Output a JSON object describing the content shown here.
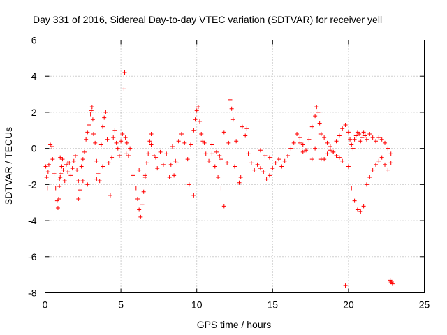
{
  "chart_data": {
    "type": "scatter",
    "title": "Day 331 of 2016, Sidereal Day-to-day VTEC variation (SDTVAR) for receiver yell",
    "xlabel": "GPS time / hours",
    "ylabel": "SDTVAR / TECUs",
    "xlim": [
      0,
      25
    ],
    "ylim": [
      -8,
      6
    ],
    "xticks": [
      0,
      5,
      10,
      15,
      20,
      25
    ],
    "yticks": [
      -8,
      -6,
      -4,
      -2,
      0,
      2,
      4,
      6
    ],
    "grid": true,
    "legend": "none",
    "marker": "+",
    "series_color": "#ff0000",
    "series": [
      {
        "name": "SDTVAR",
        "x": [
          0.05,
          0.1,
          0.15,
          0.2,
          0.25,
          0.35,
          0.45,
          0.5,
          0.6,
          0.7,
          0.8,
          0.85,
          0.9,
          0.95,
          1.0,
          1.05,
          1.1,
          1.15,
          1.2,
          1.3,
          1.4,
          1.5,
          1.6,
          1.7,
          1.8,
          1.9,
          2.0,
          2.1,
          2.2,
          2.3,
          2.4,
          2.5,
          2.6,
          2.7,
          2.8,
          2.9,
          3.0,
          3.05,
          3.1,
          3.15,
          3.2,
          3.3,
          3.4,
          3.5,
          3.6,
          3.7,
          3.8,
          3.9,
          4.0,
          4.1,
          4.2,
          4.3,
          4.4,
          4.5,
          4.6,
          4.7,
          4.8,
          4.9,
          5.0,
          5.1,
          5.2,
          5.25,
          5.3,
          5.35,
          5.4,
          5.5,
          5.6,
          5.8,
          6.0,
          6.1,
          6.2,
          6.3,
          6.4,
          6.5,
          6.6,
          6.7,
          6.8,
          6.9,
          7.0,
          7.2,
          7.4,
          7.6,
          7.8,
          8.0,
          8.2,
          8.4,
          8.6,
          8.8,
          9.0,
          9.2,
          9.4,
          9.6,
          9.8,
          9.9,
          10.0,
          10.1,
          10.2,
          10.3,
          10.4,
          10.6,
          10.8,
          11.0,
          11.2,
          11.4,
          11.5,
          11.6,
          11.8,
          12.0,
          12.1,
          12.2,
          12.3,
          12.4,
          12.6,
          12.8,
          13.0,
          13.2,
          13.4,
          13.6,
          13.8,
          14.0,
          14.2,
          14.4,
          14.6,
          14.8,
          15.0,
          15.2,
          15.4,
          15.6,
          15.8,
          16.0,
          16.2,
          16.4,
          16.6,
          16.8,
          17.0,
          17.2,
          17.4,
          17.6,
          17.8,
          17.9,
          18.0,
          18.1,
          18.2,
          18.4,
          18.6,
          18.8,
          19.0,
          19.2,
          19.4,
          19.6,
          19.8,
          20.0,
          20.1,
          20.2,
          20.3,
          20.4,
          20.5,
          20.6,
          20.7,
          20.8,
          20.9,
          21.0,
          21.1,
          21.2,
          21.4,
          21.6,
          21.8,
          22.0,
          22.2,
          22.4,
          22.6,
          22.8,
          22.85,
          22.9,
          22.75,
          22.8,
          19.8,
          20.0,
          20.2,
          20.4,
          20.6,
          20.8,
          21.0,
          21.2,
          21.4,
          21.6,
          21.8,
          22.0,
          22.2,
          22.4,
          22.6,
          22.8,
          18.2,
          18.4,
          18.6,
          18.8,
          19.0,
          19.2,
          19.4,
          19.6,
          17.6,
          17.8,
          16.8,
          17.0,
          14.2,
          14.5,
          14.8,
          11.0,
          11.3,
          11.6,
          9.5,
          9.8,
          10.5,
          11.8,
          12.5,
          12.9,
          13.3,
          8.3,
          8.5,
          8.7,
          7.0,
          7.3,
          6.2,
          6.6,
          2.2,
          2.5,
          2.8,
          1.5,
          3.4,
          3.8,
          1.0,
          0.95
        ],
        "y": [
          -1.0,
          -1.6,
          -2.2,
          -1.3,
          -0.9,
          0.2,
          0.1,
          -0.6,
          -1.4,
          -2.2,
          -2.9,
          -3.3,
          -2.8,
          -2.1,
          -1.6,
          -1.4,
          -1.0,
          -0.6,
          -1.2,
          -1.8,
          -0.9,
          -1.3,
          -0.8,
          -1.5,
          -1.1,
          -0.7,
          -0.4,
          -1.2,
          -1.8,
          -2.3,
          -1.0,
          -0.6,
          -0.2,
          0.5,
          0.9,
          1.3,
          1.9,
          2.1,
          2.3,
          1.6,
          0.8,
          0.3,
          -0.7,
          -1.4,
          -1.8,
          0.2,
          1.2,
          1.7,
          2.0,
          0.5,
          -0.8,
          -2.6,
          -0.5,
          0.6,
          1.0,
          0.3,
          0.0,
          -0.4,
          0.4,
          0.8,
          3.3,
          4.2,
          0.6,
          -0.3,
          0.3,
          -0.4,
          0.0,
          -1.5,
          -2.2,
          -2.8,
          -3.4,
          -3.8,
          -3.1,
          -2.4,
          -1.6,
          -0.8,
          -0.3,
          0.4,
          0.8,
          -0.4,
          -1.1,
          -0.2,
          -0.9,
          -0.3,
          -1.6,
          0.1,
          -0.7,
          0.4,
          0.8,
          0.3,
          -0.6,
          0.2,
          1.0,
          1.6,
          2.1,
          2.3,
          1.5,
          0.8,
          0.4,
          -0.3,
          -0.7,
          0.2,
          -1.0,
          -1.6,
          -0.4,
          -2.2,
          -3.2,
          -0.8,
          0.3,
          2.7,
          2.2,
          1.6,
          0.4,
          -1.9,
          1.2,
          0.7,
          -0.3,
          -0.8,
          -1.2,
          -0.9,
          -1.1,
          -1.3,
          -1.7,
          -1.5,
          -1.1,
          -0.8,
          -0.6,
          -1.0,
          -0.7,
          -0.4,
          0.0,
          0.3,
          0.8,
          0.6,
          0.2,
          -0.1,
          0.5,
          1.2,
          1.8,
          2.3,
          2.0,
          1.4,
          0.8,
          0.6,
          0.3,
          0.1,
          -0.2,
          0.4,
          0.7,
          1.1,
          1.3,
          0.9,
          0.5,
          0.2,
          0.0,
          0.5,
          0.7,
          0.9,
          0.8,
          0.4,
          0.6,
          0.9,
          0.7,
          0.5,
          0.8,
          0.6,
          0.4,
          0.6,
          0.5,
          0.3,
          0.0,
          -0.3,
          -7.4,
          -7.5,
          -7.3,
          -7.4,
          -7.6,
          -1.0,
          -2.2,
          -2.9,
          -3.4,
          -3.5,
          -3.2,
          -2.0,
          -1.6,
          -1.2,
          -0.9,
          -0.7,
          -0.5,
          -0.9,
          -1.2,
          -0.8,
          -0.6,
          -0.6,
          -0.3,
          -0.1,
          -0.2,
          -0.4,
          -0.5,
          -0.7,
          -0.6,
          0.0,
          0.3,
          -0.2,
          -0.1,
          -0.4,
          -0.5,
          -0.3,
          -0.2,
          -0.6,
          -2.0,
          -2.6,
          0.3,
          0.9,
          -1.0,
          -1.6,
          1.1,
          -0.9,
          -1.5,
          -0.8,
          0.2,
          -0.5,
          -1.2,
          -1.5,
          -2.8,
          -1.8,
          -2.0,
          -0.8,
          -1.7,
          -1.0,
          -0.5,
          -1.7
        ]
      }
    ]
  }
}
